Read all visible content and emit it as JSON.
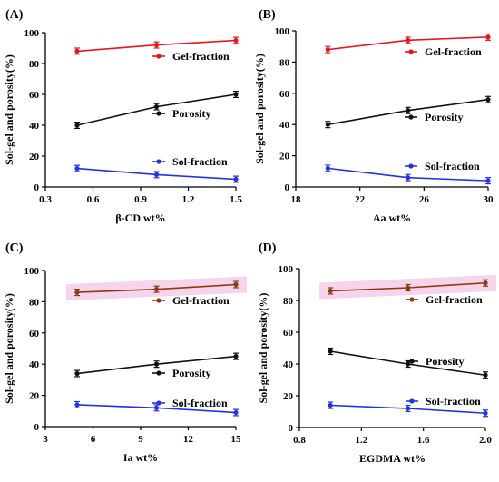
{
  "chart_data": [
    {
      "type": "line",
      "panel_label": "(A)",
      "xlabel": "β-CD wt%",
      "ylabel": "Sol-gel and porosity(%)",
      "xlim": [
        0.3,
        1.5
      ],
      "ylim": [
        0,
        100
      ],
      "x_ticks": [
        "0.3",
        "0.6",
        "0.9",
        "1.2",
        "1.5"
      ],
      "y_ticks": [
        "0",
        "20",
        "40",
        "60",
        "80",
        "100"
      ],
      "x": [
        0.5,
        1.0,
        1.5
      ],
      "highlight_band": false,
      "series": [
        {
          "name": "Gel-fraction",
          "color": "#e8141e",
          "values": [
            88,
            92,
            95
          ],
          "errors": [
            2,
            2,
            2
          ]
        },
        {
          "name": "Porosity",
          "color": "#111111",
          "values": [
            40,
            52,
            60
          ],
          "errors": [
            2,
            2,
            2
          ]
        },
        {
          "name": "Sol-fraction",
          "color": "#2233e8",
          "values": [
            12,
            8,
            5
          ],
          "errors": [
            2,
            2,
            2
          ]
        }
      ]
    },
    {
      "type": "line",
      "panel_label": "(B)",
      "xlabel": "Aa wt%",
      "ylabel": "Sol-gel and porosity(%)",
      "xlim": [
        18,
        30
      ],
      "ylim": [
        0,
        100
      ],
      "x_ticks": [
        "18",
        "22",
        "26",
        "30"
      ],
      "y_ticks": [
        "0",
        "20",
        "40",
        "60",
        "80",
        "100"
      ],
      "x": [
        20,
        25,
        30
      ],
      "highlight_band": false,
      "series": [
        {
          "name": "Gel-fraction",
          "color": "#e8141e",
          "values": [
            88,
            94,
            96
          ],
          "errors": [
            2,
            2,
            2
          ]
        },
        {
          "name": "Porosity",
          "color": "#111111",
          "values": [
            40,
            49,
            56
          ],
          "errors": [
            2,
            2,
            2
          ]
        },
        {
          "name": "Sol-fraction",
          "color": "#2233e8",
          "values": [
            12,
            6,
            4
          ],
          "errors": [
            2,
            2,
            2
          ]
        }
      ]
    },
    {
      "type": "line",
      "panel_label": "(C)",
      "xlabel": "Ia wt%",
      "ylabel": "Sol-gel and porosity(%)",
      "xlim": [
        3,
        15
      ],
      "ylim": [
        0,
        100
      ],
      "x_ticks": [
        "3",
        "6",
        "9",
        "12",
        "15"
      ],
      "y_ticks": [
        "0",
        "20",
        "40",
        "60",
        "80",
        "100"
      ],
      "x": [
        5,
        10,
        15
      ],
      "highlight_band": true,
      "series": [
        {
          "name": "Gel-fraction",
          "color": "#8b3a12",
          "values": [
            86,
            88,
            91
          ],
          "errors": [
            2,
            2,
            2
          ]
        },
        {
          "name": "Porosity",
          "color": "#111111",
          "values": [
            34,
            40,
            45
          ],
          "errors": [
            2,
            2,
            2
          ]
        },
        {
          "name": "Sol-fraction",
          "color": "#2233e8",
          "values": [
            14,
            12,
            9
          ],
          "errors": [
            2,
            2,
            2
          ]
        }
      ]
    },
    {
      "type": "line",
      "panel_label": "(D)",
      "xlabel": "EGDMA wt%",
      "ylabel": "Sol-gel and porosity(%)",
      "xlim": [
        0.8,
        2.0
      ],
      "ylim": [
        0,
        100
      ],
      "x_ticks": [
        "0.8",
        "1.2",
        "1.6",
        "2.0"
      ],
      "y_ticks": [
        "0",
        "20",
        "40",
        "60",
        "80",
        "100"
      ],
      "x": [
        1.0,
        1.5,
        2.0
      ],
      "highlight_band": true,
      "series": [
        {
          "name": "Gel-fraction",
          "color": "#8b3a12",
          "values": [
            86,
            88,
            91
          ],
          "errors": [
            2,
            2,
            2
          ]
        },
        {
          "name": "Porosity",
          "color": "#111111",
          "values": [
            48,
            40,
            33
          ],
          "errors": [
            2,
            2,
            2
          ]
        },
        {
          "name": "Sol-fraction",
          "color": "#2233e8",
          "values": [
            14,
            12,
            9
          ],
          "errors": [
            2,
            2,
            2
          ]
        }
      ]
    }
  ]
}
